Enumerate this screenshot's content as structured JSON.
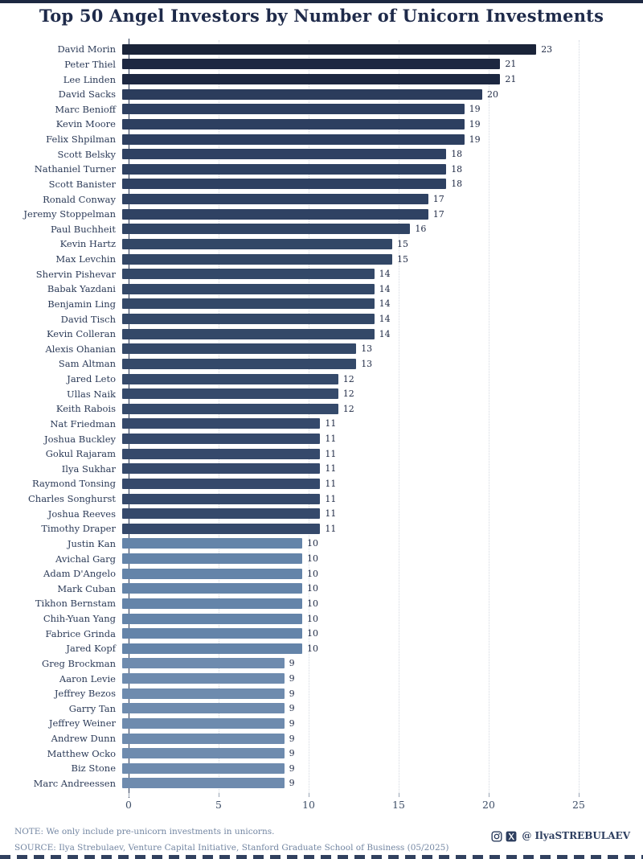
{
  "title": "Top 50 Angel Investors by Number of Unicorn Investments",
  "chart_data": {
    "type": "bar",
    "orientation": "horizontal",
    "title": "Top 50 Angel Investors by Number of Unicorn Investments",
    "xlabel": "",
    "ylabel": "",
    "xlim": [
      0,
      25
    ],
    "x_ticks": [
      0,
      5,
      10,
      15,
      20,
      25
    ],
    "grid": "vertical-dotted",
    "legend": "none",
    "investors": [
      {
        "name": "David Morin",
        "value": 23
      },
      {
        "name": "Peter Thiel",
        "value": 21
      },
      {
        "name": "Lee Linden",
        "value": 21
      },
      {
        "name": "David Sacks",
        "value": 20
      },
      {
        "name": "Marc Benioff",
        "value": 19
      },
      {
        "name": "Kevin Moore",
        "value": 19
      },
      {
        "name": "Felix Shpilman",
        "value": 19
      },
      {
        "name": "Scott Belsky",
        "value": 18
      },
      {
        "name": "Nathaniel Turner",
        "value": 18
      },
      {
        "name": "Scott Banister",
        "value": 18
      },
      {
        "name": "Ronald Conway",
        "value": 17
      },
      {
        "name": "Jeremy Stoppelman",
        "value": 17
      },
      {
        "name": "Paul Buchheit",
        "value": 16
      },
      {
        "name": "Kevin Hartz",
        "value": 15
      },
      {
        "name": "Max Levchin",
        "value": 15
      },
      {
        "name": "Shervin Pishevar",
        "value": 14
      },
      {
        "name": "Babak Yazdani",
        "value": 14
      },
      {
        "name": "Benjamin Ling",
        "value": 14
      },
      {
        "name": "David Tisch",
        "value": 14
      },
      {
        "name": "Kevin Colleran",
        "value": 14
      },
      {
        "name": "Alexis Ohanian",
        "value": 13
      },
      {
        "name": "Sam Altman",
        "value": 13
      },
      {
        "name": "Jared Leto",
        "value": 12
      },
      {
        "name": "Ullas Naik",
        "value": 12
      },
      {
        "name": "Keith Rabois",
        "value": 12
      },
      {
        "name": "Nat Friedman",
        "value": 11
      },
      {
        "name": "Joshua Buckley",
        "value": 11
      },
      {
        "name": "Gokul Rajaram",
        "value": 11
      },
      {
        "name": "Ilya Sukhar",
        "value": 11
      },
      {
        "name": "Raymond Tonsing",
        "value": 11
      },
      {
        "name": "Charles Songhurst",
        "value": 11
      },
      {
        "name": "Joshua Reeves",
        "value": 11
      },
      {
        "name": "Timothy Draper",
        "value": 11
      },
      {
        "name": "Justin Kan",
        "value": 10
      },
      {
        "name": "Avichal Garg",
        "value": 10
      },
      {
        "name": "Adam D'Angelo",
        "value": 10
      },
      {
        "name": "Mark Cuban",
        "value": 10
      },
      {
        "name": "Tikhon Bernstam",
        "value": 10
      },
      {
        "name": "Chih-Yuan Yang",
        "value": 10
      },
      {
        "name": "Fabrice Grinda",
        "value": 10
      },
      {
        "name": "Jared Kopf",
        "value": 10
      },
      {
        "name": "Greg Brockman",
        "value": 9
      },
      {
        "name": "Aaron Levie",
        "value": 9
      },
      {
        "name": "Jeffrey Bezos",
        "value": 9
      },
      {
        "name": "Garry Tan",
        "value": 9
      },
      {
        "name": "Jeffrey Weiner",
        "value": 9
      },
      {
        "name": "Andrew Dunn",
        "value": 9
      },
      {
        "name": "Matthew Ocko",
        "value": 9
      },
      {
        "name": "Biz Stone",
        "value": 9
      },
      {
        "name": "Marc Andreessen",
        "value": 9
      }
    ],
    "value_colors": {
      "23": "#1a2439",
      "21": "#1d2841",
      "20": "#2b3c5c",
      "19": "#2d3f60",
      "18": "#2e4162",
      "17": "#2f4263",
      "16": "#304464",
      "15": "#324766",
      "14": "#334868",
      "13": "#344969",
      "12": "#354a6b",
      "11": "#35496b",
      "10": "#6484a9",
      "9": "#6e8bae"
    }
  },
  "footer": {
    "note": "NOTE: We only include pre-unicorn investments in unicorns.",
    "source": "SOURCE: Ilya Strebulaev, Venture Capital Initiative, Stanford Graduate School of Business (05/2025)",
    "social_handle": "@ IlyaSTREBULAEV",
    "icons": [
      "instagram-icon",
      "x-icon"
    ]
  },
  "colors": {
    "title_text": "#1e2a4a",
    "name_text": "#2c3b58",
    "value_text": "#1f2a45",
    "axis_text": "#3f4f68",
    "footer_text": "#7386a2",
    "accent_dark": "#1d2841",
    "accent_light": "#6e8bae",
    "gridline": "#d3d8e0"
  }
}
